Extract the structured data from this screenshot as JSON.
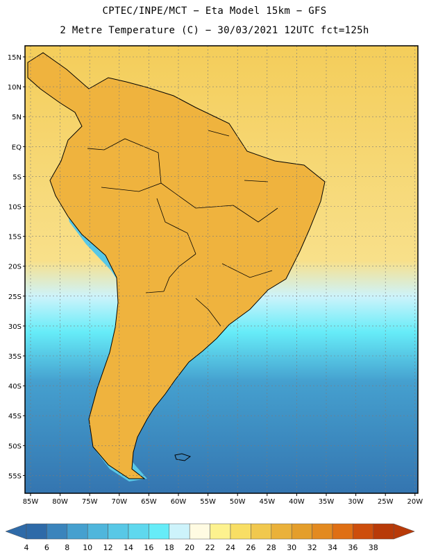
{
  "header": {
    "line1": "CPTEC/INPE/MCT −  Eta Model 15km − GFS",
    "line2": "2 Metre Temperature (C) − 30/03/2021 12UTC fct=125h"
  },
  "lat_labels": [
    "15N",
    "10N",
    "5N",
    "EQ",
    "5S",
    "10S",
    "15S",
    "20S",
    "25S",
    "30S",
    "35S",
    "40S",
    "45S",
    "50S",
    "55S"
  ],
  "lon_labels": [
    "85W",
    "80W",
    "75W",
    "70W",
    "65W",
    "60W",
    "55W",
    "50W",
    "45W",
    "40W",
    "35W",
    "30W",
    "25W",
    "20W"
  ],
  "colorbar": {
    "labels": [
      "4",
      "6",
      "8",
      "10",
      "12",
      "14",
      "16",
      "18",
      "20",
      "22",
      "24",
      "26",
      "28",
      "30",
      "32",
      "34",
      "36",
      "38"
    ],
    "colors": [
      "#2e6aa8",
      "#3a84bc",
      "#45a0cf",
      "#4fb6dc",
      "#58c8e6",
      "#5fd8ee",
      "#66ecf8",
      "#cdf3fb",
      "#fffbe2",
      "#fdf28f",
      "#f8de64",
      "#f1c84e",
      "#eab13a",
      "#e49e2b",
      "#e38a20",
      "#df6f14",
      "#cd4e0c",
      "#b83a08"
    ],
    "low_color": "#2e6aa8",
    "high_color": "#b83a08"
  },
  "map": {
    "ocean_north_color": "#f4cd5a",
    "ocean_south_color": "#3475b0",
    "land_color": "#efb33e",
    "andes_color": "#58c8e6",
    "hot_color": "#d77d1f"
  }
}
